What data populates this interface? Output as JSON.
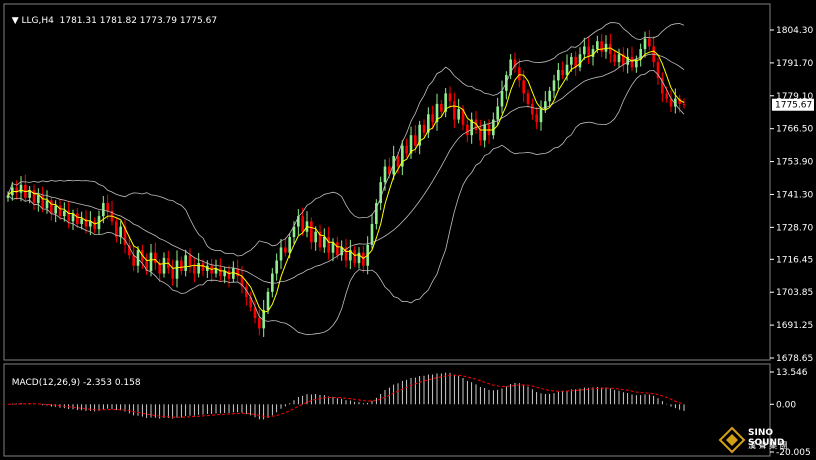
{
  "header": {
    "symbol": "LLG,H4",
    "ohlc": "1781.31 1781.82 1773.79 1775.67",
    "arrow": "triangle-down-icon"
  },
  "macd": {
    "label": "MACD(12,26,9) -2.353 0.158"
  },
  "logo": {
    "brand": "SINO SOUND",
    "sub": "漢 聲 集 團"
  },
  "colors": {
    "bg": "#000000",
    "bull": "#90ee90",
    "bear": "#ff0000",
    "ma": "#ffff00",
    "bands": "#c0c0c0",
    "macd_hist": "#ffffff",
    "macd_signal": "#ff0000",
    "axis": "#ffffff"
  },
  "chart_data": [
    {
      "type": "candlestick",
      "title": "LLG,H4",
      "yticks": [
        1804.3,
        1791.7,
        1779.1,
        1766.5,
        1753.9,
        1741.3,
        1728.7,
        1716.45,
        1703.85,
        1691.25,
        1678.65
      ],
      "ylim": [
        1678.65,
        1804.3
      ],
      "current_price": 1775.67,
      "grid": false,
      "close_series": [
        1741,
        1744,
        1742,
        1745,
        1740,
        1743,
        1738,
        1741,
        1736,
        1739,
        1734,
        1737,
        1733,
        1735,
        1731,
        1734,
        1730,
        1732,
        1729,
        1731,
        1728,
        1733,
        1738,
        1735,
        1731,
        1725,
        1729,
        1722,
        1718,
        1714,
        1720,
        1716,
        1712,
        1719,
        1715,
        1711,
        1717,
        1713,
        1709,
        1716,
        1712,
        1718,
        1714,
        1711,
        1715,
        1712,
        1714,
        1711,
        1713,
        1710,
        1712,
        1709,
        1713,
        1710,
        1706,
        1702,
        1698,
        1694,
        1690,
        1697,
        1704,
        1711,
        1716,
        1721,
        1719,
        1725,
        1729,
        1733,
        1727,
        1731,
        1723,
        1727,
        1721,
        1725,
        1719,
        1723,
        1718,
        1721,
        1716,
        1720,
        1715,
        1719,
        1714,
        1722,
        1730,
        1738,
        1746,
        1752,
        1749,
        1756,
        1752,
        1760,
        1757,
        1764,
        1760,
        1768,
        1765,
        1772,
        1769,
        1776,
        1773,
        1780,
        1777,
        1770,
        1774,
        1768,
        1764,
        1770,
        1766,
        1762,
        1768,
        1764,
        1770,
        1775,
        1781,
        1787,
        1793,
        1790,
        1785,
        1780,
        1776,
        1772,
        1769,
        1774,
        1777,
        1781,
        1785,
        1789,
        1787,
        1791,
        1794,
        1790,
        1795,
        1798,
        1794,
        1797,
        1800,
        1796,
        1799,
        1795,
        1792,
        1795,
        1791,
        1794,
        1790,
        1793,
        1797,
        1801,
        1798,
        1792,
        1786,
        1780,
        1778,
        1775,
        1778,
        1776,
        1775.67
      ]
    },
    {
      "type": "bar",
      "title": "MACD(12,26,9)",
      "yticks": [
        13.546,
        0.0,
        -20.005
      ],
      "ylim": [
        -20.005,
        13.546
      ],
      "macd": -2.353,
      "signal": 0.158
    }
  ]
}
